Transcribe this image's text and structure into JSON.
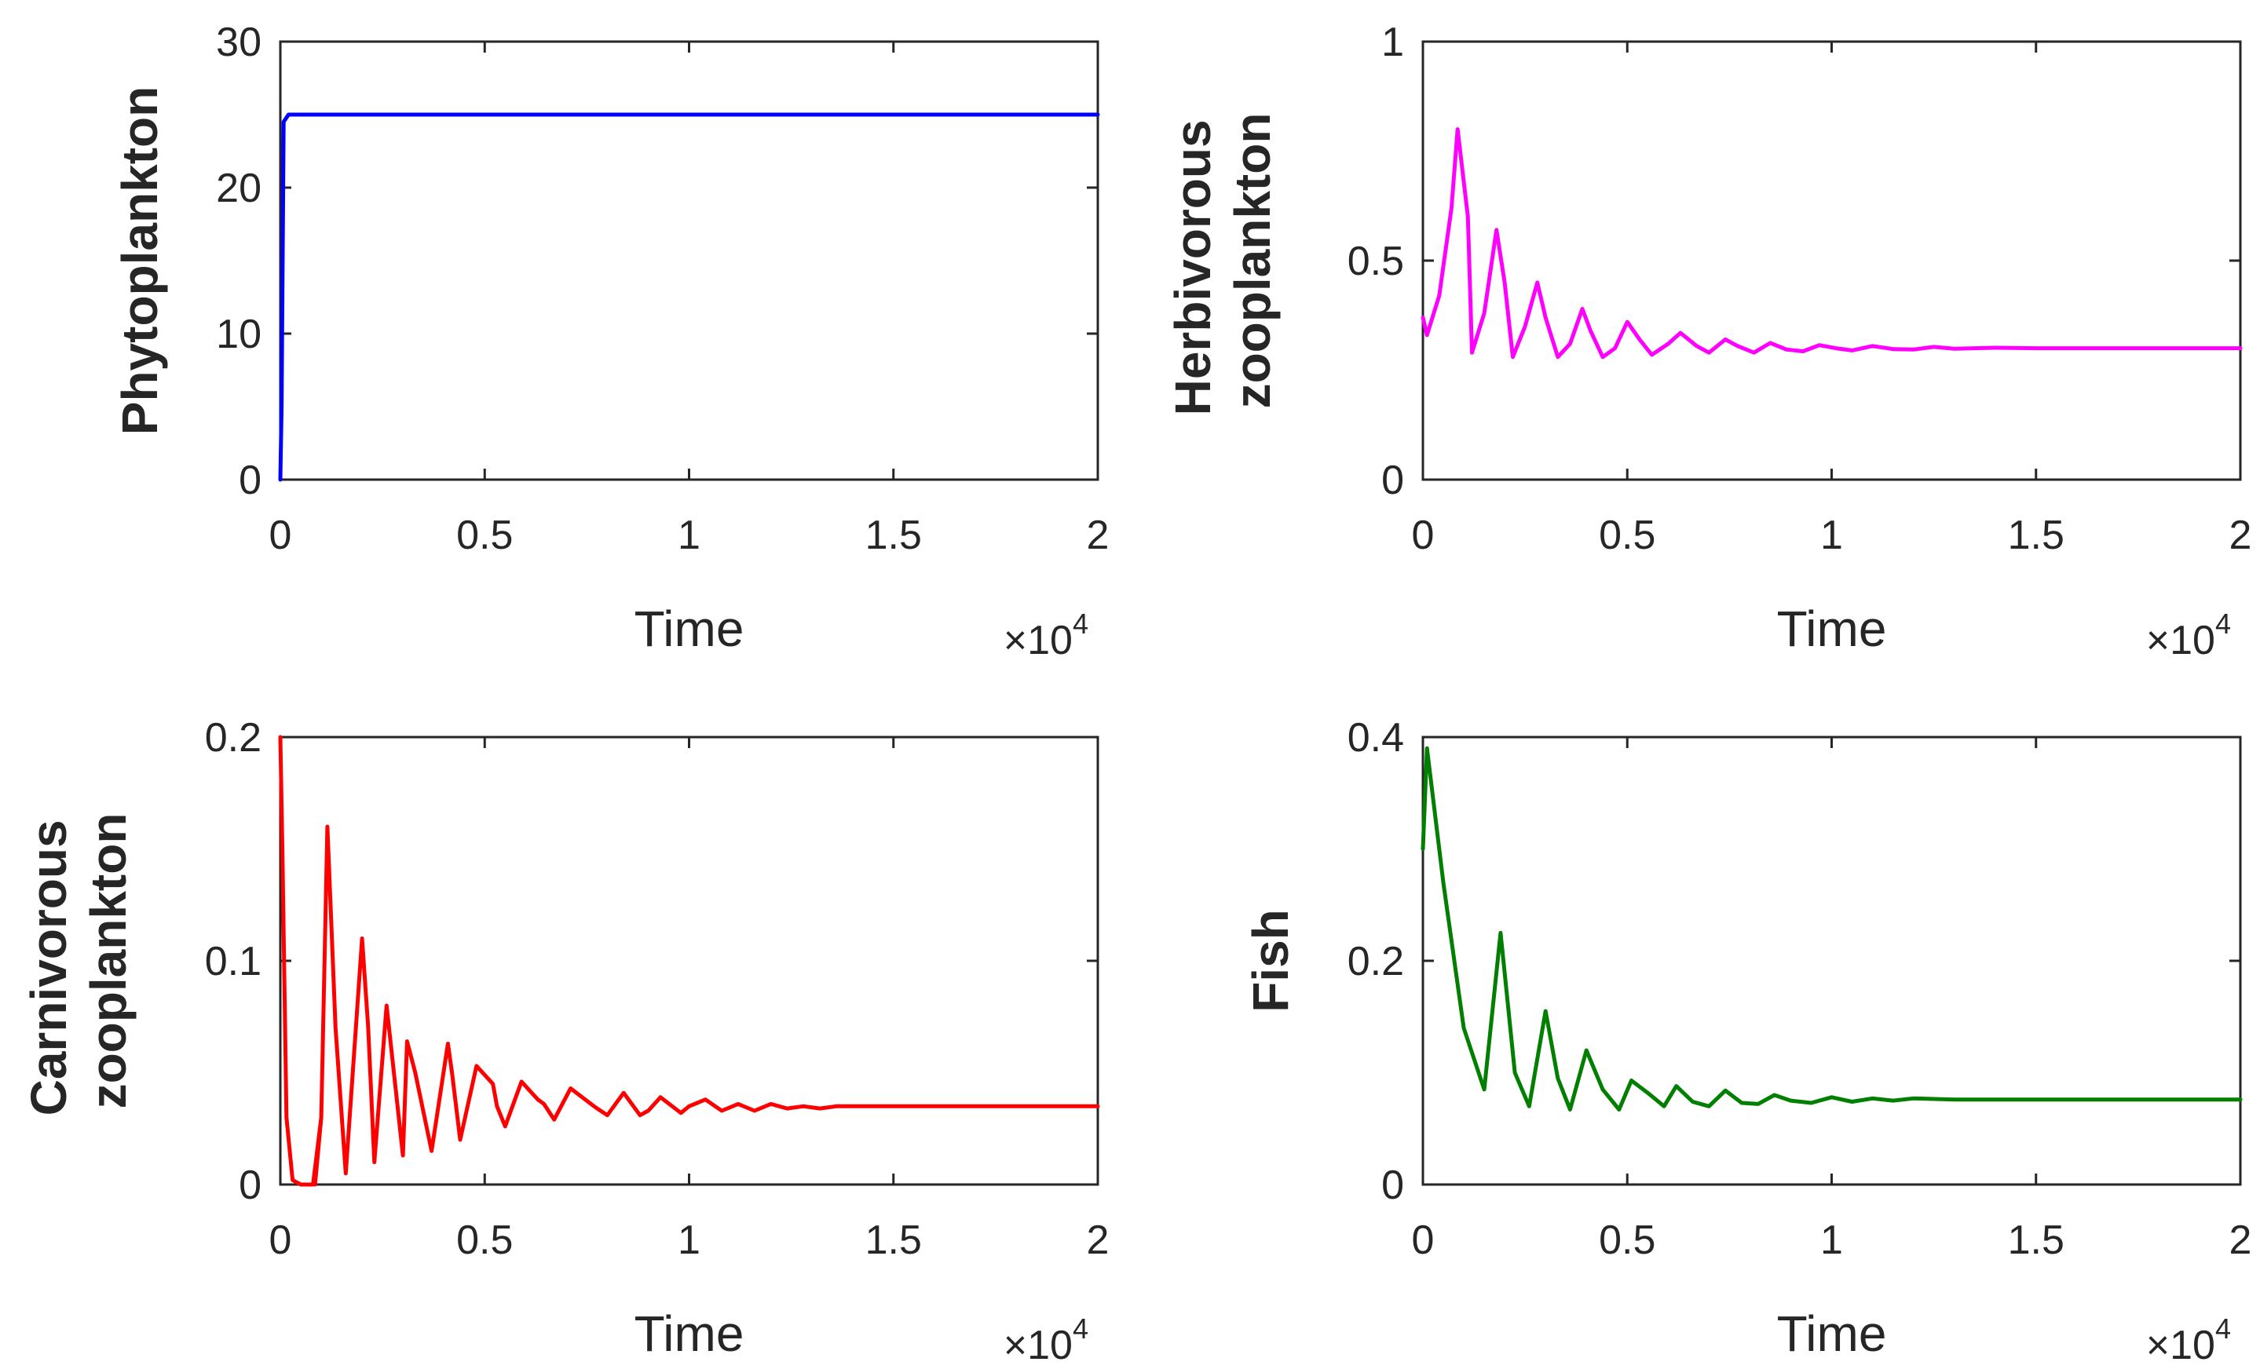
{
  "chart_data": [
    {
      "type": "line",
      "xlabel": "Time",
      "ylabel": "Phytoplankton",
      "x_multiplier": "×10",
      "x_multiplier_exp": "4",
      "xlim": [
        0,
        2
      ],
      "ylim": [
        0,
        30
      ],
      "xticks": [
        0,
        0.5,
        1,
        1.5,
        2
      ],
      "xtick_labels": [
        "0",
        "0.5",
        "1",
        "1.5",
        "2"
      ],
      "yticks": [
        0,
        10,
        20,
        30
      ],
      "ytick_labels": [
        "0",
        "10",
        "20",
        "30"
      ],
      "color": "#0000ff",
      "series": [
        {
          "x": [
            0,
            0.003,
            0.008,
            0.02,
            0.1,
            0.5,
            1,
            1.5,
            2
          ],
          "y": [
            0,
            5,
            24.5,
            25,
            25,
            25,
            25,
            25,
            25
          ]
        }
      ]
    },
    {
      "type": "line",
      "xlabel": "Time",
      "ylabel": "Herbivorous zooplankton",
      "ylabel_lines": [
        "Herbivorous",
        "zooplankton"
      ],
      "x_multiplier": "×10",
      "x_multiplier_exp": "4",
      "xlim": [
        0,
        2
      ],
      "ylim": [
        0,
        1
      ],
      "xticks": [
        0,
        0.5,
        1,
        1.5,
        2
      ],
      "xtick_labels": [
        "0",
        "0.5",
        "1",
        "1.5",
        "2"
      ],
      "yticks": [
        0,
        0.5,
        1
      ],
      "ytick_labels": [
        "0",
        "0.5",
        "1"
      ],
      "color": "#ff00ff",
      "series": [
        {
          "x": [
            0,
            0.01,
            0.04,
            0.07,
            0.085,
            0.11,
            0.12,
            0.15,
            0.18,
            0.2,
            0.22,
            0.25,
            0.28,
            0.3,
            0.33,
            0.36,
            0.39,
            0.41,
            0.44,
            0.47,
            0.5,
            0.53,
            0.56,
            0.6,
            0.63,
            0.67,
            0.7,
            0.74,
            0.77,
            0.81,
            0.85,
            0.89,
            0.93,
            0.97,
            1.01,
            1.05,
            1.1,
            1.15,
            1.2,
            1.25,
            1.3,
            1.4,
            1.5,
            1.6,
            1.8,
            2.0
          ],
          "y": [
            0.37,
            0.33,
            0.42,
            0.62,
            0.8,
            0.6,
            0.29,
            0.38,
            0.57,
            0.45,
            0.28,
            0.35,
            0.45,
            0.37,
            0.28,
            0.31,
            0.39,
            0.34,
            0.28,
            0.3,
            0.36,
            0.32,
            0.285,
            0.31,
            0.335,
            0.305,
            0.29,
            0.32,
            0.305,
            0.29,
            0.312,
            0.297,
            0.293,
            0.307,
            0.3,
            0.295,
            0.305,
            0.298,
            0.297,
            0.303,
            0.299,
            0.301,
            0.3,
            0.3,
            0.3,
            0.3
          ]
        }
      ]
    },
    {
      "type": "line",
      "xlabel": "Time",
      "ylabel": "Carnivorous zooplankton",
      "ylabel_lines": [
        "Carnivorous",
        "zooplankton"
      ],
      "x_multiplier": "×10",
      "x_multiplier_exp": "4",
      "xlim": [
        0,
        2
      ],
      "ylim": [
        0,
        0.2
      ],
      "xticks": [
        0,
        0.5,
        1,
        1.5,
        2
      ],
      "xtick_labels": [
        "0",
        "0.5",
        "1",
        "1.5",
        "2"
      ],
      "yticks": [
        0,
        0.1,
        0.2
      ],
      "ytick_labels": [
        "0",
        "0.1",
        "0.2"
      ],
      "color": "#ff0000",
      "series": [
        {
          "x": [
            0,
            0.005,
            0.015,
            0.03,
            0.05,
            0.08,
            0.1,
            0.085,
            0.1,
            0.115,
            0.135,
            0.16,
            0.2,
            0.215,
            0.23,
            0.26,
            0.3,
            0.31,
            0.33,
            0.37,
            0.41,
            0.42,
            0.44,
            0.48,
            0.52,
            0.53,
            0.55,
            0.59,
            0.63,
            0.645,
            0.67,
            0.71,
            0.76,
            0.775,
            0.8,
            0.84,
            0.88,
            0.9,
            0.93,
            0.98,
            1.0,
            1.04,
            1.08,
            1.12,
            1.16,
            1.2,
            1.24,
            1.28,
            1.32,
            1.36,
            1.4,
            1.5,
            1.6,
            1.7,
            1.8,
            1.9,
            2.0
          ],
          "y": [
            0.2,
            0.15,
            0.03,
            0.002,
            0.0,
            0.0,
            0.03,
            0.0,
            0.03,
            0.16,
            0.07,
            0.005,
            0.11,
            0.07,
            0.01,
            0.08,
            0.013,
            0.064,
            0.05,
            0.015,
            0.063,
            0.05,
            0.02,
            0.053,
            0.045,
            0.035,
            0.026,
            0.046,
            0.038,
            0.036,
            0.029,
            0.043,
            0.036,
            0.034,
            0.031,
            0.041,
            0.031,
            0.033,
            0.039,
            0.032,
            0.035,
            0.038,
            0.033,
            0.036,
            0.033,
            0.036,
            0.034,
            0.035,
            0.034,
            0.035,
            0.035,
            0.035,
            0.035,
            0.035,
            0.035,
            0.035,
            0.035
          ]
        }
      ]
    },
    {
      "type": "line",
      "xlabel": "Time",
      "ylabel": "Fish",
      "x_multiplier": "×10",
      "x_multiplier_exp": "4",
      "xlim": [
        0,
        2
      ],
      "ylim": [
        0,
        0.4
      ],
      "xticks": [
        0,
        0.5,
        1,
        1.5,
        2
      ],
      "xtick_labels": [
        "0",
        "0.5",
        "1",
        "1.5",
        "2"
      ],
      "yticks": [
        0,
        0.2,
        0.4
      ],
      "ytick_labels": [
        "0",
        "0.2",
        "0.4"
      ],
      "color": "#007f00",
      "series": [
        {
          "x": [
            0,
            0.01,
            0.05,
            0.1,
            0.15,
            0.19,
            0.225,
            0.26,
            0.3,
            0.33,
            0.36,
            0.4,
            0.44,
            0.48,
            0.51,
            0.55,
            0.59,
            0.62,
            0.66,
            0.7,
            0.74,
            0.78,
            0.82,
            0.86,
            0.9,
            0.95,
            1.0,
            1.05,
            1.1,
            1.15,
            1.2,
            1.3,
            1.4,
            1.5,
            1.6,
            1.8,
            2.0
          ],
          "y": [
            0.3,
            0.39,
            0.27,
            0.14,
            0.085,
            0.225,
            0.1,
            0.07,
            0.155,
            0.095,
            0.067,
            0.12,
            0.085,
            0.067,
            0.093,
            0.082,
            0.07,
            0.088,
            0.074,
            0.07,
            0.084,
            0.073,
            0.072,
            0.08,
            0.075,
            0.073,
            0.078,
            0.074,
            0.077,
            0.075,
            0.077,
            0.076,
            0.076,
            0.076,
            0.076,
            0.076,
            0.076
          ]
        }
      ]
    }
  ]
}
